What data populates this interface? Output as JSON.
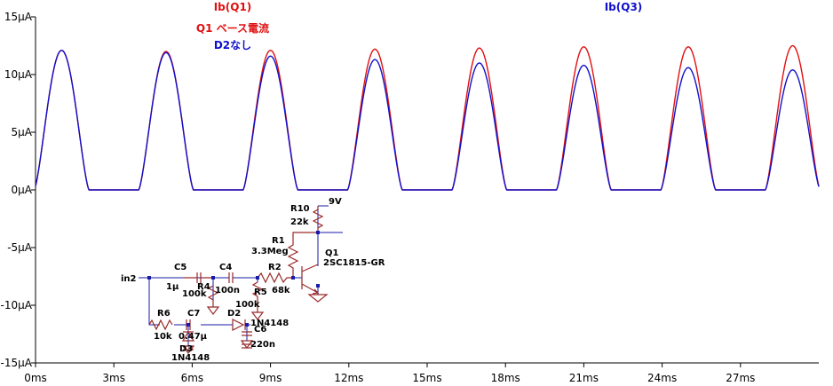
{
  "chart_data": {
    "type": "line",
    "x_unit": "ms",
    "y_unit": "µA",
    "xlim": [
      0,
      30
    ],
    "ylim": [
      -15,
      15
    ],
    "x_ticks": [
      0,
      3,
      6,
      9,
      12,
      15,
      18,
      21,
      24,
      27
    ],
    "x_tick_labels": [
      "0ms",
      "3ms",
      "6ms",
      "9ms",
      "12ms",
      "15ms",
      "18ms",
      "21ms",
      "24ms",
      "27ms"
    ],
    "y_ticks": [
      15,
      10,
      5,
      0,
      -5,
      -10,
      -15
    ],
    "y_tick_labels": [
      "15µA",
      "10µA",
      "5µA",
      "0µA",
      "-5µA",
      "-10µA",
      "-15µA"
    ],
    "grid": false,
    "period_ms": 4,
    "first_peak_ms": 1,
    "pulse_width_ms": 2.1,
    "series": [
      {
        "name": "Ib(Q1)",
        "color": "#e01010",
        "peaks": [
          12.1,
          12.0,
          12.1,
          12.2,
          12.3,
          12.4,
          12.4,
          12.5
        ]
      },
      {
        "name": "Ib(Q3)",
        "color": "#1010cc",
        "peaks": [
          12.1,
          11.9,
          11.6,
          11.3,
          11.0,
          10.8,
          10.6,
          10.4
        ]
      }
    ],
    "annotations": [
      {
        "text": "Q1 ベース電流",
        "color": "#e01010"
      },
      {
        "text": "D2なし",
        "color": "#1010cc"
      }
    ]
  },
  "schematic": {
    "labels": {
      "in": "in2",
      "c5": "C5",
      "c5v": "1µ",
      "c4": "C4",
      "c4v": "100n",
      "r4": "R4",
      "r4v": "100k",
      "r5": "R5",
      "r5v": "100k",
      "r2": "R2",
      "r2v": "68k",
      "r1": "R1",
      "r1v": "3.3Meg",
      "r10": "R10",
      "r10v": "22k",
      "vcc": "9V",
      "q1": "Q1",
      "q1v": "2SC1815-GR",
      "r6": "R6",
      "r6v": "10k",
      "c7": "C7",
      "c7v": "0.47µ",
      "d2": "D2",
      "d2v": "1N4148",
      "c6": "C6",
      "c6v": "220n",
      "d3": "D3",
      "d3v": "1N4148"
    }
  }
}
